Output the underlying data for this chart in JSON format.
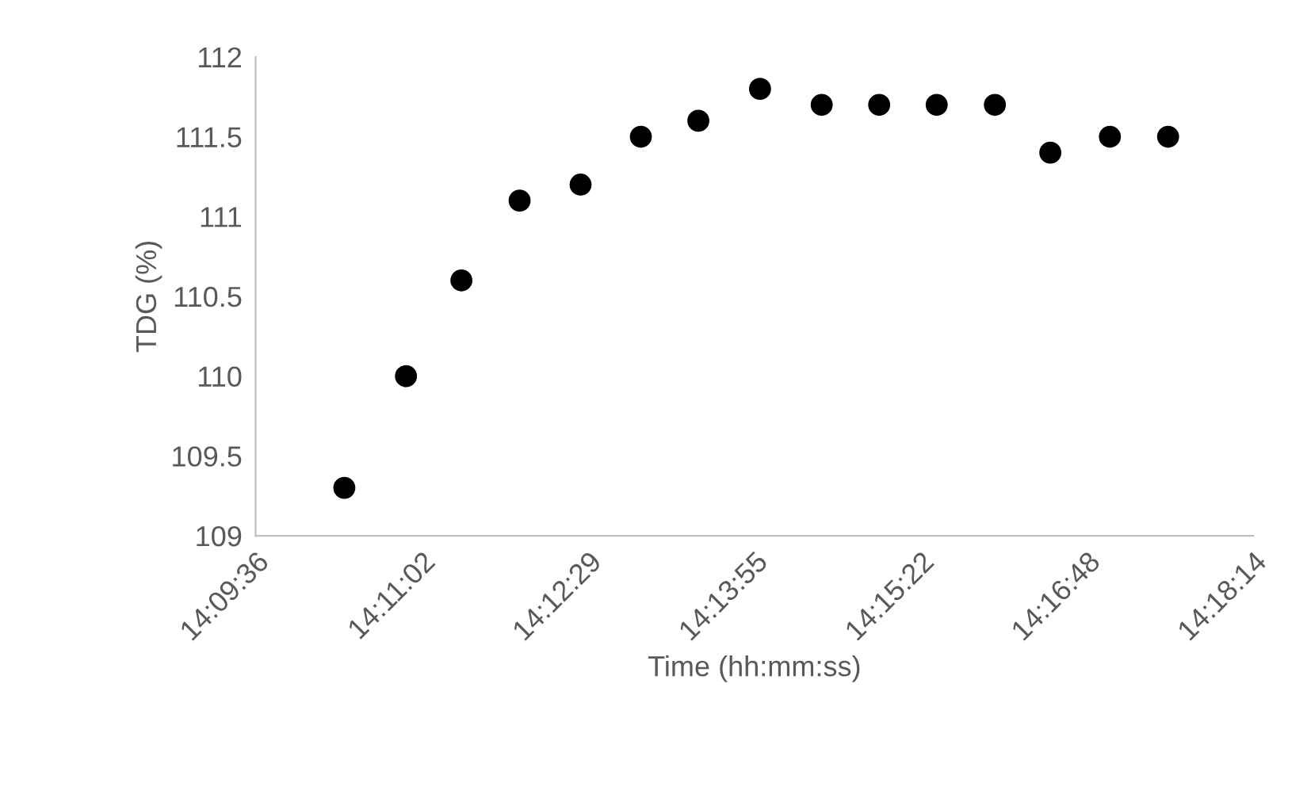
{
  "chart_data": {
    "type": "scatter",
    "xlabel": "Time (hh:mm:ss)",
    "ylabel": "TDG (%)",
    "x": [
      14.1728,
      14.1817,
      14.1897,
      14.1981,
      14.2069,
      14.2156,
      14.2239,
      14.2328,
      14.2417,
      14.25,
      14.2583,
      14.2667,
      14.2747,
      14.2833,
      14.2917
    ],
    "series": [
      {
        "color": "#000000",
        "values": [
          109.3,
          110.0,
          110.6,
          111.1,
          111.2,
          111.5,
          111.6,
          111.8,
          111.7,
          111.7,
          111.7,
          111.7,
          111.4,
          111.5,
          111.5
        ]
      }
    ],
    "xlim": [
      14.16,
      14.304
    ],
    "xticks": [
      {
        "value": 14.16,
        "label": "14:09:36"
      },
      {
        "value": 14.184,
        "label": "14:11:02"
      },
      {
        "value": 14.208,
        "label": "14:12:29"
      },
      {
        "value": 14.232,
        "label": "14:13:55"
      },
      {
        "value": 14.256,
        "label": "14:15:22"
      },
      {
        "value": 14.28,
        "label": "14:16:48"
      },
      {
        "value": 14.304,
        "label": "14:18:14"
      }
    ],
    "ylim": [
      109,
      112
    ],
    "yticks": [
      109,
      109.5,
      110,
      110.5,
      111,
      111.5,
      112
    ],
    "grid": false,
    "legend": false,
    "marker": "circle"
  }
}
